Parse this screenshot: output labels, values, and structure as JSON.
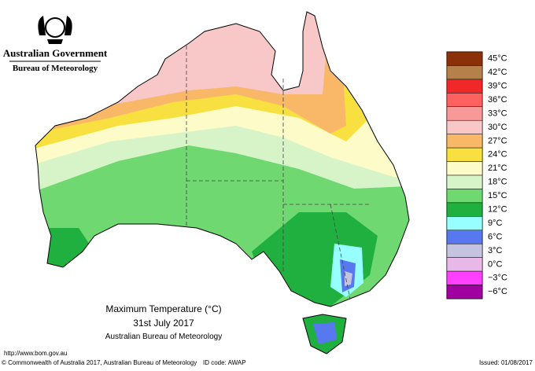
{
  "header": {
    "title": "Australian Government",
    "subtitle": "Bureau of Meteorology"
  },
  "legend": [
    {
      "label": "45°C",
      "color": "#8b3008"
    },
    {
      "label": "42°C",
      "color": "#b5804a"
    },
    {
      "label": "39°C",
      "color": "#f02828"
    },
    {
      "label": "36°C",
      "color": "#ff6060"
    },
    {
      "label": "33°C",
      "color": "#f89898"
    },
    {
      "label": "30°C",
      "color": "#f8c8c8"
    },
    {
      "label": "27°C",
      "color": "#f8b868"
    },
    {
      "label": "24°C",
      "color": "#f8e040"
    },
    {
      "label": "21°C",
      "color": "#fdfcc8"
    },
    {
      "label": "18°C",
      "color": "#d6f4c8"
    },
    {
      "label": "15°C",
      "color": "#70d870"
    },
    {
      "label": "12°C",
      "color": "#20b040"
    },
    {
      "label": "9°C",
      "color": "#98ffff"
    },
    {
      "label": "6°C",
      "color": "#5878f0"
    },
    {
      "label": "3°C",
      "color": "#c4c4e0"
    },
    {
      "label": "0°C",
      "color": "#e8b8e8"
    },
    {
      "label": "−3°C",
      "color": "#ff40ff"
    },
    {
      "label": "−6°C",
      "color": "#a000a0"
    }
  ],
  "caption": {
    "title": "Maximum Temperature (°C)",
    "date": "31st July 2017",
    "source": "Australian Bureau of Meteorology"
  },
  "footer": {
    "url": "http://www.bom.gov.au",
    "copyright": "© Commonwealth of Australia 2017, Australian Bureau of Meteorology",
    "id_code": "ID code: AWAP",
    "issued": "Issued: 01/08/2017"
  }
}
